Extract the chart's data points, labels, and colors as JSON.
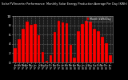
{
  "title": "Solar PV/Inverter Performance  Monthly Solar Energy Production Average Per Day (KWh)",
  "bar_color": "#ff0000",
  "bg_color": "#000000",
  "plot_bg": "#1a1a1a",
  "fig_bg": "#000000",
  "text_color": "#ffffff",
  "grid_color": "#ffffff",
  "values": [
    3.1,
    5.0,
    7.2,
    8.8,
    8.1,
    8.3,
    5.8,
    2.2,
    0.4,
    1.5,
    6.5,
    8.9,
    8.6,
    8.5,
    3.8,
    1.1,
    6.8,
    8.2,
    9.0,
    8.8,
    7.2,
    6.8,
    5.5,
    4.2,
    1.5
  ],
  "ylim": [
    0,
    10
  ],
  "ytick_step": 2,
  "months": [
    "Jan\n07",
    "Feb\n07",
    "Mar\n07",
    "Apr\n07",
    "May\n07",
    "Jun\n07",
    "Jul\n07",
    "Aug\n07",
    "Sep\n07",
    "Oct\n07",
    "Nov\n07",
    "Dec\n07",
    "Jan\n08",
    "Feb\n08",
    "Mar\n08",
    "Apr\n08",
    "May\n08",
    "Jun\n08",
    "Jul\n08",
    "Aug\n08",
    "Sep\n08",
    "Oct\n08",
    "Nov\n08",
    "Dec\n08",
    "Jan\n09"
  ],
  "legend_label": "Month kWh/Day",
  "font_size": 3.2
}
